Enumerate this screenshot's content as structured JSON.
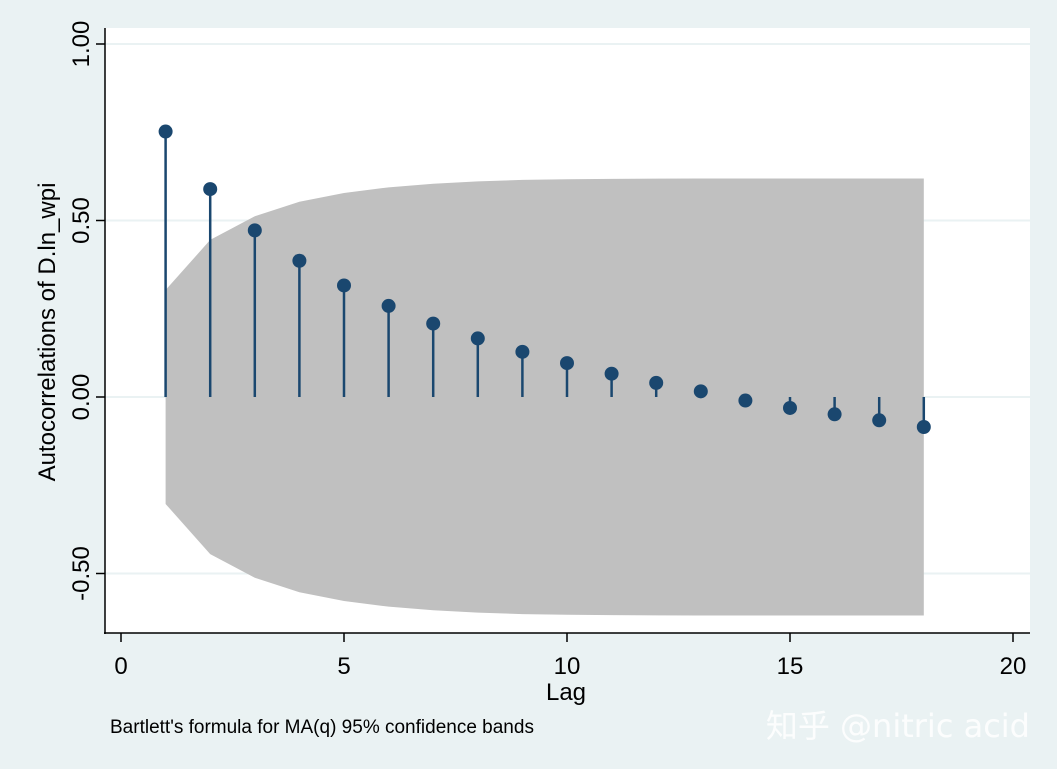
{
  "chart_data": {
    "type": "correlogram",
    "ylabel": "Autocorrelations of D.ln_wpi",
    "xlabel": "Lag",
    "note": "Bartlett's formula for MA(q) 95% confidence bands",
    "xlim": [
      0,
      20
    ],
    "ylim": [
      -0.65,
      1.0
    ],
    "x_ticks": [
      0,
      5,
      10,
      15,
      20
    ],
    "y_ticks": [
      1.0,
      0.5,
      0.0,
      -0.5
    ],
    "y_tick_labels": [
      "1.00",
      "0.50",
      "0.00",
      "-0.50"
    ],
    "grid": true,
    "lags": [
      1,
      2,
      3,
      4,
      5,
      6,
      7,
      8,
      9,
      10,
      11,
      12,
      13,
      14,
      15,
      16,
      17,
      18
    ],
    "values": [
      0.752,
      0.589,
      0.472,
      0.386,
      0.316,
      0.258,
      0.208,
      0.166,
      0.128,
      0.096,
      0.066,
      0.04,
      0.016,
      -0.01,
      -0.031,
      -0.049,
      -0.066,
      -0.085
    ],
    "confidence_band": [
      0.303,
      0.445,
      0.512,
      0.553,
      0.578,
      0.594,
      0.604,
      0.611,
      0.615,
      0.617,
      0.618,
      0.6185,
      0.619,
      0.619,
      0.619,
      0.619,
      0.619,
      0.619
    ],
    "colors": {
      "background": "#eaf2f3",
      "plot_area": "#ffffff",
      "band": "#c0c0c0",
      "spike": "#1a476f",
      "grid": "#eaf2f3"
    }
  },
  "watermark": "知乎 @nitric acid"
}
